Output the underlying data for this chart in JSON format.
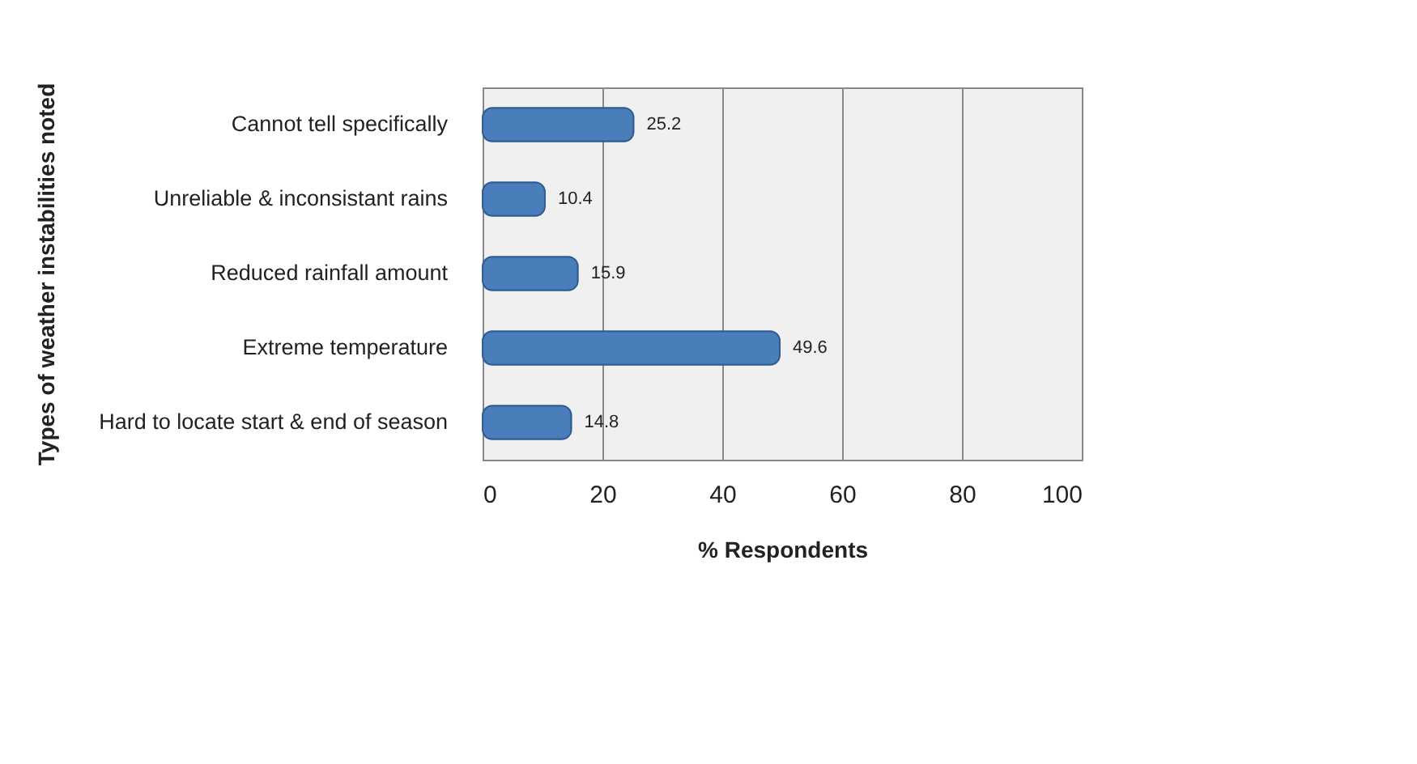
{
  "chart_data": {
    "type": "bar",
    "orientation": "horizontal",
    "xlabel": "% Respondents",
    "ylabel": "Types of weather instabilities noted",
    "categories": [
      "Cannot tell specifically",
      "Unreliable & inconsistant rains",
      "Reduced rainfall amount",
      "Extreme temperature",
      "Hard to locate start & end of season"
    ],
    "values": [
      25.2,
      10.4,
      15.9,
      49.6,
      14.8
    ],
    "color": "#4a7ebb",
    "xlim": [
      0,
      100
    ],
    "xticks": [
      0,
      20,
      40,
      60,
      80,
      100
    ],
    "grid": "x",
    "data_labels": true
  }
}
